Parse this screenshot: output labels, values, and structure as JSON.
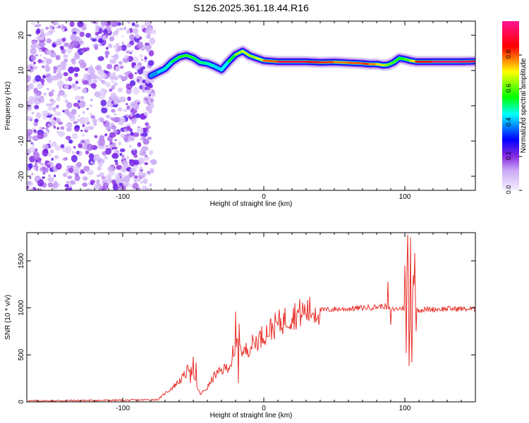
{
  "chart_data": [
    {
      "type": "heatmap",
      "title": "S126.2025.361.18.44.R16",
      "xlabel": "Height of straight line (km)",
      "ylabel": "Frequency (Hz)",
      "xlim": [
        -168,
        150
      ],
      "ylim": [
        -24,
        24
      ],
      "x_ticks": [
        -100,
        0,
        100
      ],
      "x_tick_labels": [
        "-100",
        "0",
        "100"
      ],
      "y_ticks": [
        -20,
        -10,
        0,
        10,
        20
      ],
      "y_tick_labels": [
        "-20",
        "-10",
        "0",
        "10",
        "20"
      ],
      "colorbar": {
        "label": "Normalized spectral amplitude",
        "range": [
          0,
          1
        ],
        "ticks": [
          0.0,
          0.2,
          0.4,
          0.6,
          0.8
        ],
        "tick_labels": [
          "0.0",
          "0.2",
          "0.4",
          "0.6",
          "0.8"
        ],
        "colors": [
          "#f5f0ff",
          "#8a2be2",
          "#0000ff",
          "#00ffff",
          "#00ff00",
          "#ffff00",
          "#ff0000",
          "#ff1493"
        ]
      },
      "noise_region_x": [
        -168,
        -78
      ],
      "ridge": {
        "x": [
          -80,
          -75,
          -70,
          -65,
          -60,
          -55,
          -50,
          -45,
          -40,
          -35,
          -30,
          -25,
          -20,
          -15,
          -10,
          -5,
          0,
          10,
          20,
          30,
          40,
          50,
          60,
          70,
          75,
          80,
          85,
          88,
          92,
          96,
          100,
          104,
          108,
          120,
          130,
          140,
          150
        ],
        "freq": [
          8.5,
          9.5,
          10.5,
          12.5,
          13.8,
          14.3,
          13.6,
          12.3,
          12,
          11.2,
          10.2,
          12.5,
          14.5,
          15.5,
          14.2,
          13.5,
          12.8,
          12.5,
          12.5,
          12.5,
          12.3,
          12.4,
          12.2,
          12,
          11.8,
          11.8,
          11.5,
          11.6,
          12.3,
          13.5,
          13.2,
          12.8,
          12.5,
          12.5,
          12.5,
          12.5,
          12.6
        ],
        "amplitude": [
          0.35,
          0.4,
          0.45,
          0.5,
          0.55,
          0.6,
          0.55,
          0.5,
          0.5,
          0.45,
          0.4,
          0.5,
          0.6,
          0.7,
          0.65,
          0.65,
          0.7,
          0.9,
          0.95,
          0.9,
          0.85,
          0.8,
          0.75,
          0.85,
          0.8,
          0.75,
          0.7,
          0.6,
          0.6,
          0.55,
          0.55,
          0.65,
          0.8,
          0.95,
          0.95,
          0.95,
          0.9
        ]
      }
    },
    {
      "type": "line",
      "xlabel": "Height of straight line (km)",
      "ylabel": "SNR (10 * v/v)",
      "xlim": [
        -168,
        150
      ],
      "ylim": [
        0,
        1800
      ],
      "x_ticks": [
        -100,
        0,
        100
      ],
      "x_tick_labels": [
        "-100",
        "0",
        "100"
      ],
      "y_ticks": [
        0,
        500,
        1000,
        1500
      ],
      "y_tick_labels": [
        "0",
        "500",
        "1000",
        "1500"
      ],
      "series": [
        {
          "name": "SNR",
          "color": "#e8312a",
          "x": [
            -168,
            -150,
            -130,
            -110,
            -90,
            -75,
            -70,
            -65,
            -60,
            -55,
            -52,
            -50,
            -45,
            -40,
            -35,
            -30,
            -25,
            -20,
            -18,
            -15,
            -10,
            -5,
            0,
            10,
            20,
            30,
            40,
            50,
            60,
            70,
            80,
            85,
            90,
            95,
            100,
            102,
            104,
            106,
            108,
            110,
            120,
            130,
            140,
            150
          ],
          "y": [
            10,
            12,
            14,
            16,
            18,
            25,
            90,
            150,
            220,
            300,
            420,
            250,
            80,
            150,
            280,
            330,
            380,
            470,
            750,
            510,
            590,
            650,
            720,
            830,
            920,
            960,
            975,
            985,
            990,
            1000,
            1010,
            1020,
            980,
            990,
            1000,
            1500,
            600,
            1350,
            980,
            980,
            985,
            990,
            990,
            985
          ],
          "spikes": [
            [
              -50,
              480
            ],
            [
              -48,
              420
            ],
            [
              -52,
              200
            ],
            [
              -20,
              960
            ],
            [
              -22,
              600
            ],
            [
              -18,
              200
            ],
            [
              88,
              1280
            ],
            [
              90,
              820
            ],
            [
              100,
              1450
            ],
            [
              101,
              520
            ],
            [
              102,
              1780
            ],
            [
              103,
              380
            ],
            [
              104,
              1750
            ],
            [
              105,
              420
            ],
            [
              107,
              1580
            ],
            [
              108,
              750
            ]
          ]
        }
      ]
    }
  ]
}
